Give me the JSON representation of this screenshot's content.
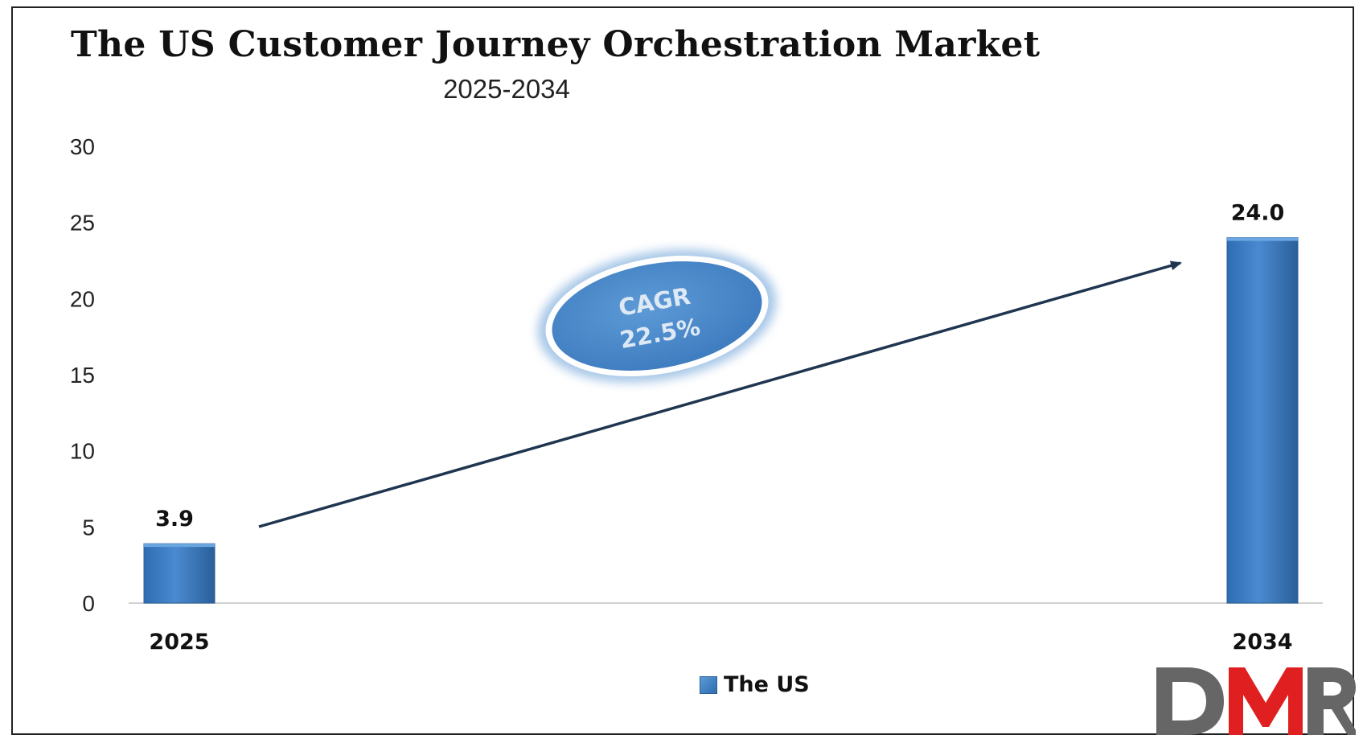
{
  "title": "The US Customer Journey Orchestration Market",
  "subtitle": "2025-2034",
  "chart_data": {
    "type": "bar",
    "categories": [
      "2025",
      "2034"
    ],
    "series": [
      {
        "name": "The US",
        "values": [
          3.9,
          24.0
        ]
      }
    ],
    "data_labels": [
      "3.9",
      "24.0"
    ],
    "ylim": [
      0,
      30
    ],
    "yticks": [
      0,
      5,
      10,
      15,
      20,
      25,
      30
    ],
    "grid": false,
    "legend": "bottom",
    "annotation": {
      "line1": "CAGR",
      "line2": "22.5%"
    }
  },
  "colors": {
    "bar": "#3f7fc4",
    "bar_dark": "#2a5f99",
    "arrow": "#1f3550",
    "logo_dark": "#666666",
    "logo_accent": "#e02020"
  },
  "logo": {
    "text": "DMR"
  }
}
